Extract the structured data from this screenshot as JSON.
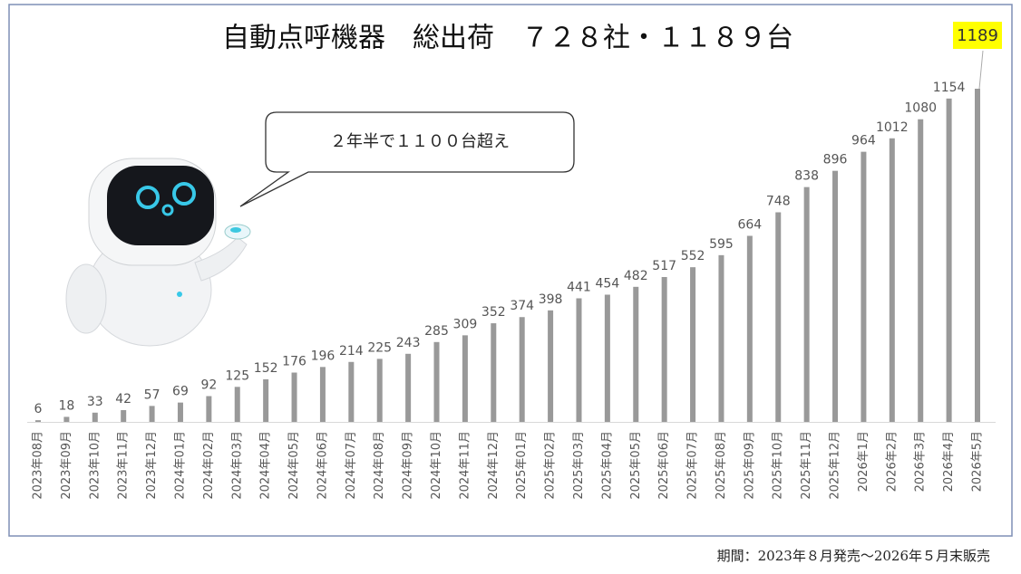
{
  "chart_data": {
    "type": "bar",
    "title": "自動点呼機器　総出荷　７２８社・１１８９台",
    "annotation": "２年半で１１００台超え",
    "footnote": "期間：2023年８月発売～2026年５月末販売",
    "color": "#999999",
    "categories": [
      "2023年08月",
      "2023年09月",
      "2023年10月",
      "2023年11月",
      "2023年12月",
      "2024年01月",
      "2024年02月",
      "2024年03月",
      "2024年04月",
      "2024年05月",
      "2024年06月",
      "2024年07月",
      "2024年08月",
      "2024年09月",
      "2024年10月",
      "2024年11月",
      "2024年12月",
      "2025年01月",
      "2025年02月",
      "2025年03月",
      "2025年04月",
      "2025年05月",
      "2025年06月",
      "2025年07月",
      "2025年08月",
      "2025年09月",
      "2025年10月",
      "2025年11月",
      "2025年12月",
      "2026年1月",
      "2026年2月",
      "2026年3月",
      "2026年4月",
      "2026年5月"
    ],
    "values": [
      6,
      18,
      33,
      42,
      57,
      69,
      92,
      125,
      152,
      176,
      196,
      214,
      225,
      243,
      285,
      309,
      352,
      374,
      398,
      441,
      454,
      482,
      517,
      552,
      595,
      664,
      748,
      838,
      896,
      964,
      1012,
      1080,
      1154,
      1189
    ]
  }
}
